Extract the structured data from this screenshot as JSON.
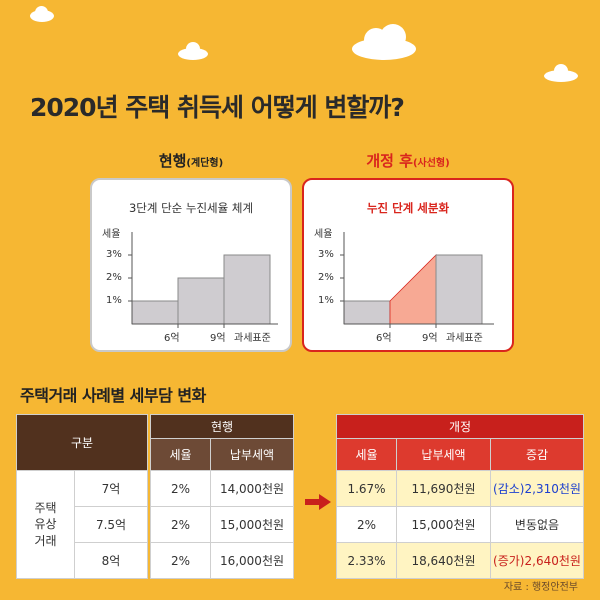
{
  "title": "2020년 주택 취득세 어떻게 변할까?",
  "left_panel": {
    "heading": "현행",
    "heading_sub": "(계단형)",
    "subtitle": "3단계 단순 누진세율 체계",
    "y_axis_label": "세율",
    "y_ticks": [
      "3%",
      "2%",
      "1%"
    ],
    "x_ticks": [
      "6억",
      "9억",
      "과세표준"
    ]
  },
  "right_panel": {
    "heading": "개정 후",
    "heading_sub": "(사선형)",
    "subtitle": "누진 단계 세분화",
    "y_axis_label": "세율",
    "y_ticks": [
      "3%",
      "2%",
      "1%"
    ],
    "x_ticks": [
      "6억",
      "9억",
      "과세표준"
    ]
  },
  "section_title": "주택거래 사례별 세부담 변화",
  "table": {
    "gubun_header": "구분",
    "row_group_label_lines": [
      "주택",
      "유상",
      "거래"
    ],
    "prices": [
      "7억",
      "7.5억",
      "8억"
    ],
    "current": {
      "header": "현행",
      "columns": [
        "세율",
        "납부세액"
      ],
      "rows": [
        {
          "rate": "2%",
          "tax": "14,000천원"
        },
        {
          "rate": "2%",
          "tax": "15,000천원"
        },
        {
          "rate": "2%",
          "tax": "16,000천원"
        }
      ]
    },
    "revised": {
      "header": "개정",
      "columns": [
        "세율",
        "납부세액",
        "증감"
      ],
      "rows": [
        {
          "rate": "1.67%",
          "tax": "11,690천원",
          "change": "(감소)2,310천원"
        },
        {
          "rate": "2%",
          "tax": "15,000천원",
          "change": "변동없음"
        },
        {
          "rate": "2.33%",
          "tax": "18,640천원",
          "change": "(증가)2,640천원"
        }
      ]
    }
  },
  "source": "자료 : 행정안전부",
  "colors": {
    "background": "#f6b733",
    "accent_red": "#d9251d",
    "dark_header": "#51311e",
    "bar_gray": "#cfccd0",
    "slope_fill": "#f7a994",
    "highlight_row": "#fff4c2",
    "decrease_text": "#1c3fcf"
  },
  "icons": [
    "cloud-icon",
    "arrow-right-icon"
  ]
}
